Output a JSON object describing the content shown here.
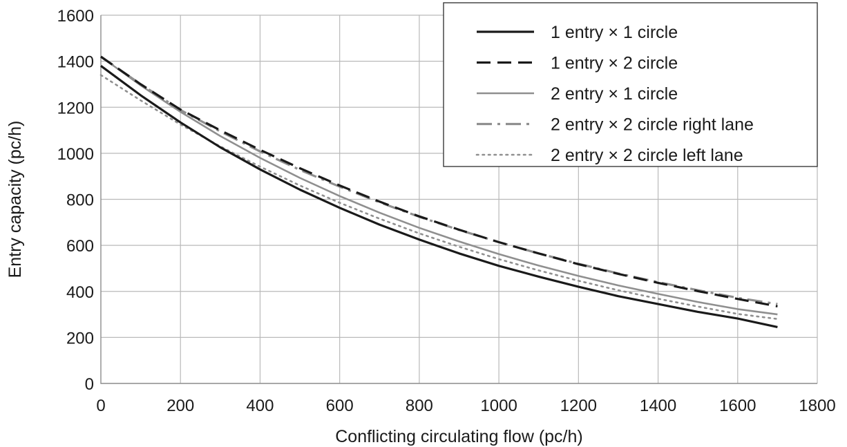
{
  "chart_data": {
    "type": "line",
    "title": "",
    "xlabel": "Conflicting circulating flow (pc/h)",
    "ylabel": "Entry capacity (pc/h)",
    "xlim": [
      0,
      1800
    ],
    "ylim": [
      0,
      1600
    ],
    "xticks": [
      0,
      200,
      400,
      600,
      800,
      1000,
      1200,
      1400,
      1600,
      1800
    ],
    "yticks": [
      0,
      200,
      400,
      600,
      800,
      1000,
      1200,
      1400,
      1600
    ],
    "grid": true,
    "legend_position": "top-right",
    "series": [
      {
        "name": "1 entry × 1 circle",
        "color": "#1a1a1a",
        "style": "solid",
        "x": [
          0,
          100,
          200,
          300,
          400,
          500,
          600,
          700,
          800,
          900,
          1000,
          1100,
          1200,
          1300,
          1400,
          1500,
          1600,
          1700
        ],
        "y": [
          1380,
          1252,
          1134,
          1026,
          930,
          842,
          763,
          690,
          625,
          565,
          511,
          464,
          420,
          379,
          345,
          311,
          282,
          245
        ]
      },
      {
        "name": "1 entry × 2 circle",
        "color": "#1a1a1a",
        "style": "dashed",
        "x": [
          0,
          100,
          200,
          300,
          400,
          500,
          600,
          700,
          800,
          900,
          1000,
          1100,
          1200,
          1300,
          1400,
          1500,
          1600,
          1700
        ],
        "y": [
          1420,
          1300,
          1190,
          1100,
          1015,
          935,
          860,
          790,
          726,
          668,
          614,
          565,
          518,
          476,
          437,
          401,
          367,
          335
        ]
      },
      {
        "name": "2 entry × 1 circle",
        "color": "#8f8f8f",
        "style": "solid",
        "x": [
          0,
          100,
          200,
          300,
          400,
          500,
          600,
          700,
          800,
          900,
          1000,
          1100,
          1200,
          1300,
          1400,
          1500,
          1600,
          1700
        ],
        "y": [
          1420,
          1295,
          1180,
          1075,
          980,
          893,
          814,
          742,
          676,
          617,
          562,
          512,
          467,
          426,
          389,
          354,
          323,
          300
        ]
      },
      {
        "name": "2 entry × 2 circle right lane",
        "color": "#8f8f8f",
        "style": "dashdot",
        "x": [
          0,
          100,
          200,
          300,
          400,
          500,
          600,
          700,
          800,
          900,
          1000,
          1100,
          1200,
          1300,
          1400,
          1500,
          1600,
          1700
        ],
        "y": [
          1420,
          1300,
          1188,
          1095,
          1008,
          928,
          855,
          787,
          724,
          667,
          614,
          565,
          520,
          478,
          440,
          405,
          372,
          345
        ]
      },
      {
        "name": "2 entry × 2 circle left lane",
        "color": "#8f8f8f",
        "style": "dotted",
        "x": [
          0,
          100,
          200,
          300,
          400,
          500,
          600,
          700,
          800,
          900,
          1000,
          1100,
          1200,
          1300,
          1400,
          1500,
          1600,
          1700
        ],
        "y": [
          1340,
          1230,
          1125,
          1030,
          942,
          860,
          785,
          716,
          652,
          594,
          540,
          491,
          446,
          405,
          368,
          334,
          302,
          280
        ]
      }
    ]
  }
}
